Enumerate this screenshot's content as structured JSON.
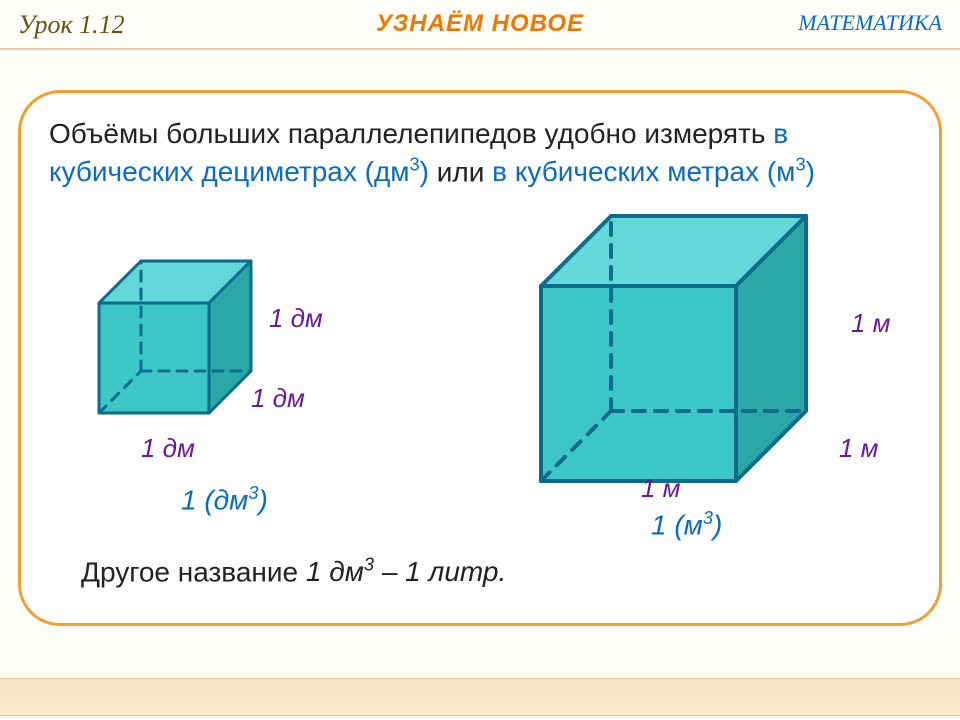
{
  "header": {
    "lesson": "Урок 1.12",
    "title": "УЗНАЁМ НОВОЕ",
    "subject": "МАТЕМАТИКА"
  },
  "panel": {
    "main_pre": "Объёмы больших параллелепипедов удобно измерять ",
    "hl1": "в кубических дециметрах (дм",
    "hl1_sup": "3",
    "hl1_close": ")",
    "mid": " или ",
    "hl2": "в кубических метрах (м",
    "hl2_sup": "3",
    "hl2_close": ")",
    "footnote_pre": "Другое  название ",
    "footnote_mid": "1 дм",
    "footnote_sup": "3",
    "footnote_end": "   – 1 литр."
  },
  "cubes": {
    "small": {
      "edge_label": "1 дм",
      "volume_pre": "1 (дм",
      "volume_sup": "3",
      "volume_close": ")",
      "face_fill": "#3cc7c7",
      "top_fill": "#62d7d7",
      "side_fill": "#2aa8a8",
      "edge_stroke": "#0d6b8b",
      "hidden_stroke": "#0d6b8b",
      "stroke_width": 3,
      "dash": "10,8"
    },
    "large": {
      "edge_label": "1 м",
      "volume_pre": "1 (м",
      "volume_sup": "3",
      "volume_close": ")",
      "face_fill": "#3cc7c7",
      "top_fill": "#62d7d7",
      "side_fill": "#2aa8a8",
      "edge_stroke": "#0d6b8b",
      "hidden_stroke": "#0d6b8b",
      "stroke_width": 4,
      "dash": "12,10"
    }
  },
  "colors": {
    "panel_border": "#f0a030",
    "background": "#fffef8",
    "label_color": "#6a1b9a",
    "text_blue": "#0a6cc0"
  }
}
